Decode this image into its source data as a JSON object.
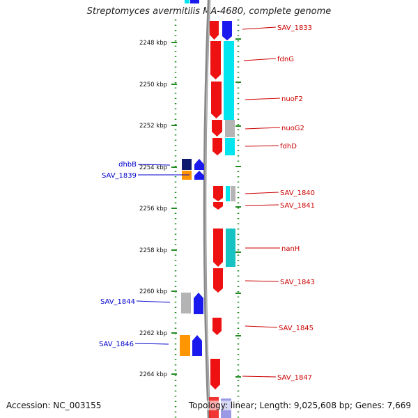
{
  "title": "Streptomyces avermitilis MA-4680, complete genome",
  "footer": {
    "accession": "Accession: NC_003155",
    "summary": "Topology: linear; Length: 9,025,608 bp; Genes: 7,669"
  },
  "ruler_ticks": [
    "2248 kbp",
    "2250 kbp",
    "2252 kbp",
    "2254 kbp",
    "2256 kbp",
    "2258 kbp",
    "2260 kbp",
    "2262 kbp",
    "2264 kbp"
  ],
  "colors": {
    "forward": "#ee1111",
    "cyan": "#00e5ee",
    "teal": "#16c2c2",
    "blue": "#1a1aee",
    "navy": "#0d1a6e",
    "orange": "#ff9500",
    "gray": "#b4b4b4",
    "backbone": "#888888",
    "dots": "#228b22",
    "label_red": "#cc0000",
    "label_blue": "#0000cc"
  },
  "right_labels": [
    "SAV_1833",
    "fdnG",
    "nuoF2",
    "nuoG2",
    "fdhD",
    "SAV_1840",
    "SAV_1841",
    "nanH",
    "SAV_1843",
    "SAV_1845",
    "SAV_1847"
  ],
  "left_labels": [
    "dhbB",
    "SAV_1839",
    "SAV_1844",
    "SAV_1846"
  ]
}
